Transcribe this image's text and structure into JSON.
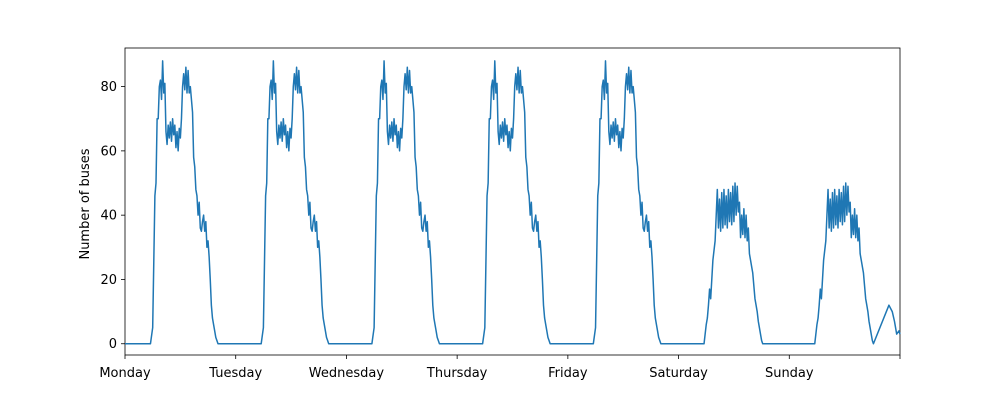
{
  "chart_data": {
    "type": "line",
    "title": "",
    "xlabel": "",
    "ylabel": "Number of buses",
    "ylim": [
      -3.5,
      92
    ],
    "xlim": [
      0,
      7
    ],
    "grid": false,
    "line_color": "#1f77b4",
    "x_ticks": [
      {
        "value": 0,
        "label": "Monday"
      },
      {
        "value": 1,
        "label": "Tuesday"
      },
      {
        "value": 2,
        "label": "Wednesday"
      },
      {
        "value": 3,
        "label": "Thursday"
      },
      {
        "value": 4,
        "label": "Friday"
      },
      {
        "value": 5,
        "label": "Saturday"
      },
      {
        "value": 6,
        "label": "Sunday"
      },
      {
        "value": 7,
        "label": ""
      }
    ],
    "y_ticks": [
      0,
      20,
      40,
      60,
      80
    ],
    "series": [
      {
        "days": [
          {
            "day": "Monday",
            "profile": "weekday"
          },
          {
            "day": "Tuesday",
            "profile": "weekday"
          },
          {
            "day": "Wednesday",
            "profile": "weekday"
          },
          {
            "day": "Thursday",
            "profile": "weekday"
          },
          {
            "day": "Friday",
            "profile": "weekday"
          },
          {
            "day": "Saturday",
            "profile": "weekend"
          },
          {
            "day": "Sunday",
            "profile": "weekend"
          }
        ],
        "profiles": {
          "weekday": [
            [
              0.0,
              0
            ],
            [
              0.23,
              0
            ],
            [
              0.25,
              5
            ],
            [
              0.27,
              46
            ],
            [
              0.28,
              50
            ],
            [
              0.29,
              70
            ],
            [
              0.3,
              70
            ],
            [
              0.31,
              80
            ],
            [
              0.32,
              82
            ],
            [
              0.33,
              76
            ],
            [
              0.34,
              88
            ],
            [
              0.35,
              78
            ],
            [
              0.36,
              81
            ],
            [
              0.37,
              66
            ],
            [
              0.38,
              62
            ],
            [
              0.39,
              68
            ],
            [
              0.4,
              64
            ],
            [
              0.41,
              69
            ],
            [
              0.42,
              63
            ],
            [
              0.43,
              70
            ],
            [
              0.44,
              65
            ],
            [
              0.45,
              68
            ],
            [
              0.46,
              61
            ],
            [
              0.47,
              66
            ],
            [
              0.48,
              60
            ],
            [
              0.49,
              67
            ],
            [
              0.5,
              64
            ],
            [
              0.51,
              70
            ],
            [
              0.52,
              80
            ],
            [
              0.53,
              84
            ],
            [
              0.54,
              79
            ],
            [
              0.55,
              86
            ],
            [
              0.56,
              78
            ],
            [
              0.57,
              85
            ],
            [
              0.58,
              78
            ],
            [
              0.59,
              80
            ],
            [
              0.6,
              76
            ],
            [
              0.61,
              72
            ],
            [
              0.62,
              58
            ],
            [
              0.63,
              55
            ],
            [
              0.64,
              48
            ],
            [
              0.65,
              46
            ],
            [
              0.66,
              40
            ],
            [
              0.67,
              44
            ],
            [
              0.68,
              36
            ],
            [
              0.69,
              35
            ],
            [
              0.7,
              38
            ],
            [
              0.71,
              40
            ],
            [
              0.72,
              35
            ],
            [
              0.73,
              38
            ],
            [
              0.74,
              30
            ],
            [
              0.75,
              32
            ],
            [
              0.76,
              27
            ],
            [
              0.77,
              20
            ],
            [
              0.78,
              12
            ],
            [
              0.79,
              8
            ],
            [
              0.8,
              6
            ],
            [
              0.81,
              4
            ],
            [
              0.82,
              2
            ],
            [
              0.83,
              1
            ],
            [
              0.84,
              0
            ],
            [
              1.0,
              0
            ]
          ],
          "weekend": [
            [
              0.0,
              0
            ],
            [
              0.23,
              0
            ],
            [
              0.24,
              3
            ],
            [
              0.25,
              6
            ],
            [
              0.26,
              8
            ],
            [
              0.27,
              12
            ],
            [
              0.28,
              17
            ],
            [
              0.29,
              14
            ],
            [
              0.3,
              20
            ],
            [
              0.31,
              26
            ],
            [
              0.32,
              29
            ],
            [
              0.33,
              32
            ],
            [
              0.34,
              40
            ],
            [
              0.35,
              48
            ],
            [
              0.36,
              36
            ],
            [
              0.37,
              45
            ],
            [
              0.38,
              35
            ],
            [
              0.39,
              47
            ],
            [
              0.4,
              36
            ],
            [
              0.41,
              48
            ],
            [
              0.42,
              37
            ],
            [
              0.43,
              46
            ],
            [
              0.44,
              36
            ],
            [
              0.45,
              48
            ],
            [
              0.46,
              38
            ],
            [
              0.47,
              47
            ],
            [
              0.48,
              37
            ],
            [
              0.49,
              49
            ],
            [
              0.5,
              38
            ],
            [
              0.51,
              50
            ],
            [
              0.52,
              40
            ],
            [
              0.53,
              49
            ],
            [
              0.54,
              41
            ],
            [
              0.55,
              44
            ],
            [
              0.56,
              33
            ],
            [
              0.57,
              40
            ],
            [
              0.58,
              34
            ],
            [
              0.59,
              42
            ],
            [
              0.6,
              33
            ],
            [
              0.61,
              40
            ],
            [
              0.62,
              32
            ],
            [
              0.63,
              36
            ],
            [
              0.64,
              28
            ],
            [
              0.65,
              26
            ],
            [
              0.66,
              24
            ],
            [
              0.67,
              22
            ],
            [
              0.68,
              18
            ],
            [
              0.69,
              14
            ],
            [
              0.7,
              12
            ],
            [
              0.71,
              10
            ],
            [
              0.72,
              7
            ],
            [
              0.73,
              5
            ],
            [
              0.74,
              3
            ],
            [
              0.75,
              1
            ],
            [
              0.76,
              0
            ],
            [
              1.0,
              0
            ]
          ]
        },
        "end_values": [
          [
            6.9,
            12
          ],
          [
            6.93,
            10
          ],
          [
            6.95,
            7
          ],
          [
            6.97,
            3
          ],
          [
            6.99,
            4
          ],
          [
            7.0,
            3
          ]
        ]
      }
    ]
  }
}
